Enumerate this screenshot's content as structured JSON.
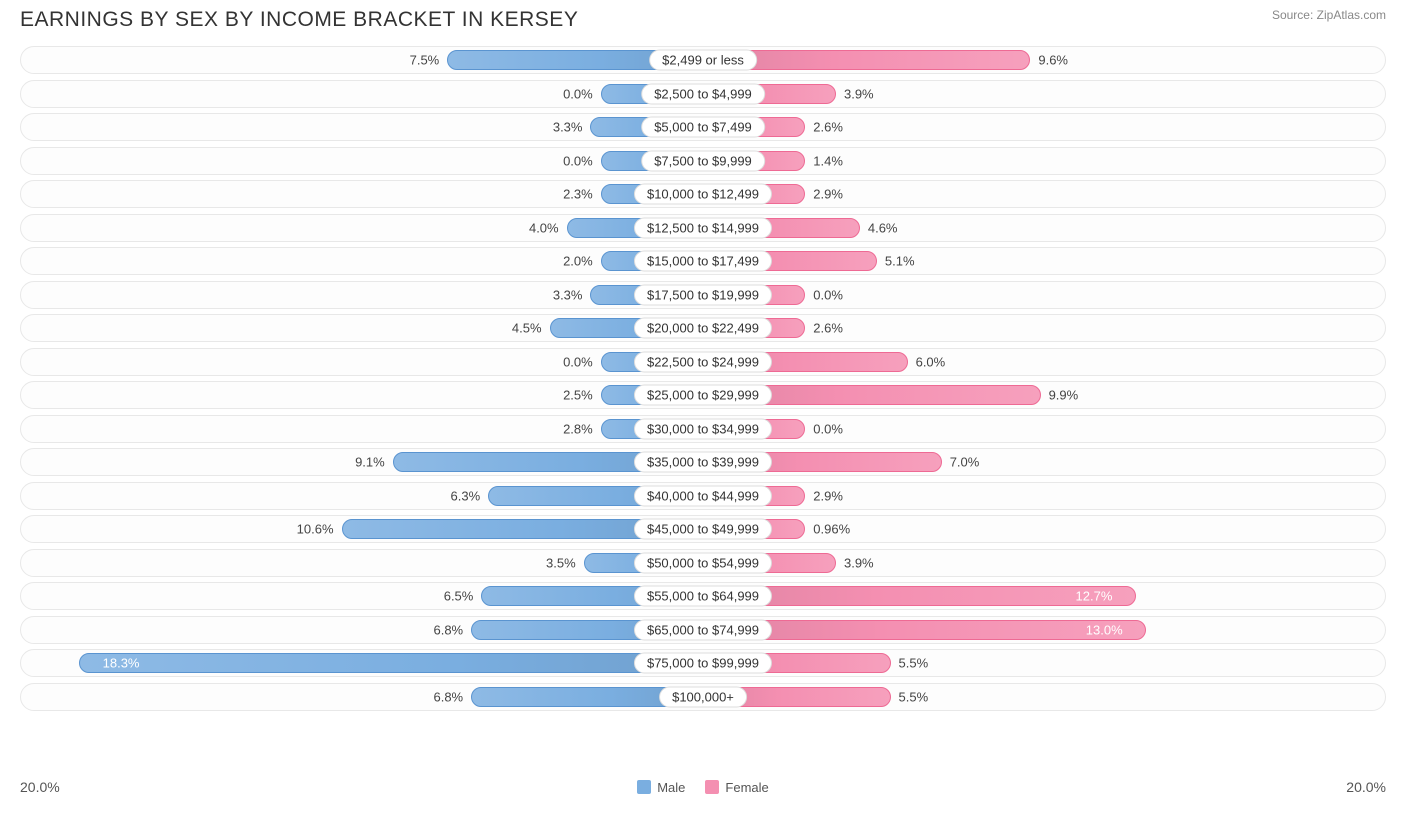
{
  "title": "EARNINGS BY SEX BY INCOME BRACKET IN KERSEY",
  "source": "Source: ZipAtlas.com",
  "axis_max_pct": 20.0,
  "axis_label_left": "20.0%",
  "axis_label_right": "20.0%",
  "colors": {
    "male_base": "#7aaee0",
    "male_border": "#5a94d0",
    "female_base": "#f48fb1",
    "female_border": "#ee6a94",
    "track_bg": "#fdfdfd",
    "track_border": "#e8e8e8",
    "text": "#444444",
    "text_inside": "#ffffff",
    "cat_border": "#dddddd"
  },
  "legend": {
    "male_label": "Male",
    "female_label": "Female"
  },
  "rows": [
    {
      "label": "$2,499 or less",
      "male": 7.5,
      "male_txt": "7.5%",
      "female": 9.6,
      "female_txt": "9.6%"
    },
    {
      "label": "$2,500 to $4,999",
      "male": 0.0,
      "male_txt": "0.0%",
      "female": 3.9,
      "female_txt": "3.9%"
    },
    {
      "label": "$5,000 to $7,499",
      "male": 3.3,
      "male_txt": "3.3%",
      "female": 2.6,
      "female_txt": "2.6%"
    },
    {
      "label": "$7,500 to $9,999",
      "male": 0.0,
      "male_txt": "0.0%",
      "female": 1.4,
      "female_txt": "1.4%"
    },
    {
      "label": "$10,000 to $12,499",
      "male": 2.3,
      "male_txt": "2.3%",
      "female": 2.9,
      "female_txt": "2.9%"
    },
    {
      "label": "$12,500 to $14,999",
      "male": 4.0,
      "male_txt": "4.0%",
      "female": 4.6,
      "female_txt": "4.6%"
    },
    {
      "label": "$15,000 to $17,499",
      "male": 2.0,
      "male_txt": "2.0%",
      "female": 5.1,
      "female_txt": "5.1%"
    },
    {
      "label": "$17,500 to $19,999",
      "male": 3.3,
      "male_txt": "3.3%",
      "female": 0.0,
      "female_txt": "0.0%"
    },
    {
      "label": "$20,000 to $22,499",
      "male": 4.5,
      "male_txt": "4.5%",
      "female": 2.6,
      "female_txt": "2.6%"
    },
    {
      "label": "$22,500 to $24,999",
      "male": 0.0,
      "male_txt": "0.0%",
      "female": 6.0,
      "female_txt": "6.0%"
    },
    {
      "label": "$25,000 to $29,999",
      "male": 2.5,
      "male_txt": "2.5%",
      "female": 9.9,
      "female_txt": "9.9%"
    },
    {
      "label": "$30,000 to $34,999",
      "male": 2.8,
      "male_txt": "2.8%",
      "female": 0.0,
      "female_txt": "0.0%"
    },
    {
      "label": "$35,000 to $39,999",
      "male": 9.1,
      "male_txt": "9.1%",
      "female": 7.0,
      "female_txt": "7.0%"
    },
    {
      "label": "$40,000 to $44,999",
      "male": 6.3,
      "male_txt": "6.3%",
      "female": 2.9,
      "female_txt": "2.9%"
    },
    {
      "label": "$45,000 to $49,999",
      "male": 10.6,
      "male_txt": "10.6%",
      "female": 0.96,
      "female_txt": "0.96%"
    },
    {
      "label": "$50,000 to $54,999",
      "male": 3.5,
      "male_txt": "3.5%",
      "female": 3.9,
      "female_txt": "3.9%"
    },
    {
      "label": "$55,000 to $64,999",
      "male": 6.5,
      "male_txt": "6.5%",
      "female": 12.7,
      "female_txt": "12.7%"
    },
    {
      "label": "$65,000 to $74,999",
      "male": 6.8,
      "male_txt": "6.8%",
      "female": 13.0,
      "female_txt": "13.0%"
    },
    {
      "label": "$75,000 to $99,999",
      "male": 18.3,
      "male_txt": "18.3%",
      "female": 5.5,
      "female_txt": "5.5%"
    },
    {
      "label": "$100,000+",
      "male": 6.8,
      "male_txt": "6.8%",
      "female": 5.5,
      "female_txt": "5.5%"
    }
  ]
}
